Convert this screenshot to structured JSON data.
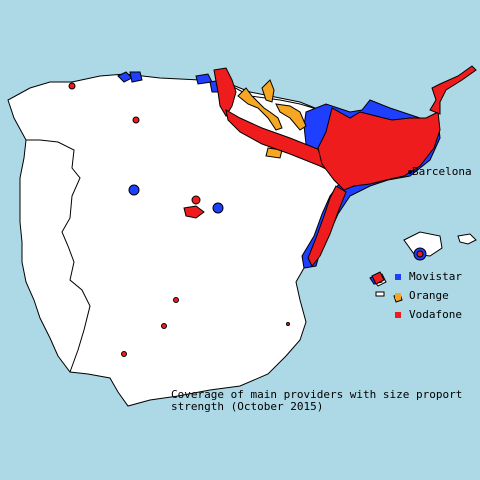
{
  "map": {
    "city_label": "Barcelona",
    "caption_line1": "Coverage of main providers with size proport",
    "caption_line2": "strength (October 2015)"
  },
  "legend": [
    {
      "name": "Movistar",
      "color": "#1f3fff"
    },
    {
      "name": "Orange",
      "color": "#f5a623"
    },
    {
      "name": "Vodafone",
      "color": "#ee1c1c"
    }
  ],
  "colors": {
    "sea": "#add8e6",
    "land": "#ffffff",
    "border": "#000000"
  }
}
